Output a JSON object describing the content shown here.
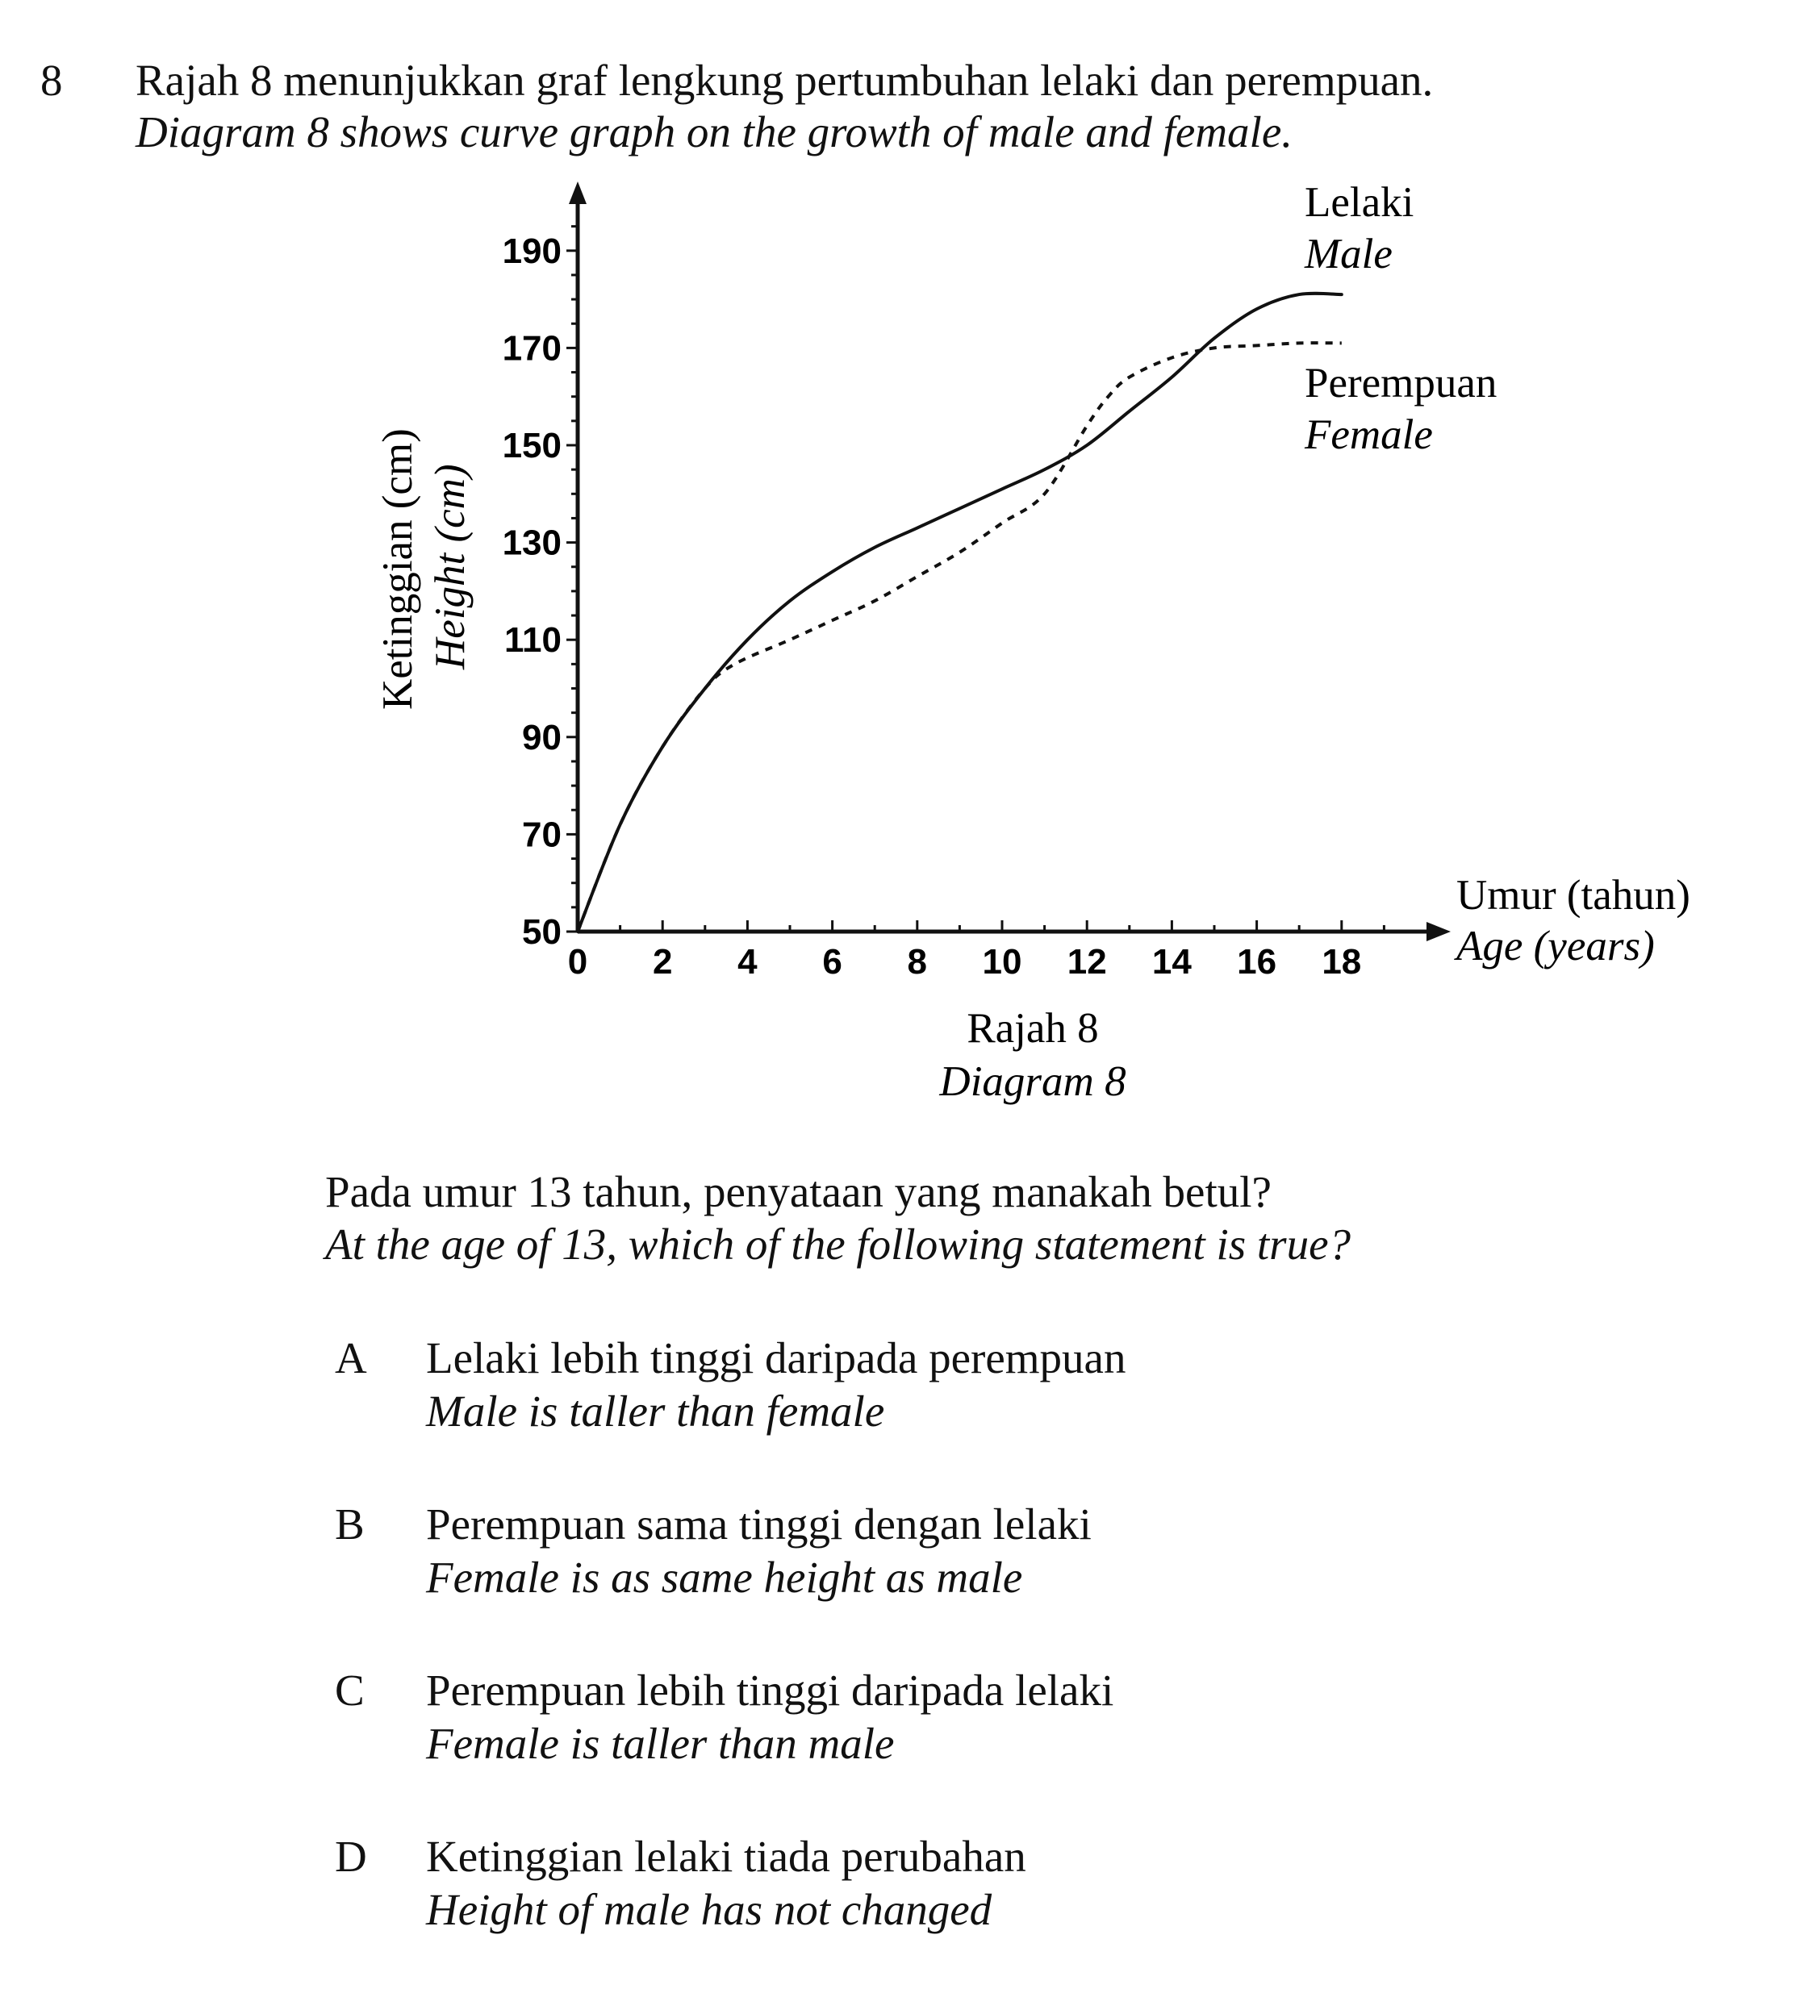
{
  "question": {
    "number": "8",
    "stem_ms": "Rajah 8 menunjukkan graf lengkung pertumbuhan lelaki dan perempuan.",
    "stem_en": "Diagram 8 shows curve graph on the growth of male and female.",
    "prompt_ms": "Pada umur 13 tahun, penyataan yang manakah betul?",
    "prompt_en": "At the age of 13, which of the following statement is true?"
  },
  "diagram": {
    "caption_ms": "Rajah 8",
    "caption_en": "Diagram 8"
  },
  "chart_data": {
    "type": "line",
    "xlabel_ms": "Umur (tahun)",
    "xlabel_en": "Age (years)",
    "ylabel_ms": "Ketinggian (cm)",
    "ylabel_en": "Height (cm)",
    "xlim": [
      0,
      20
    ],
    "ylim": [
      50,
      200
    ],
    "x_ticks": [
      0,
      2,
      4,
      6,
      8,
      10,
      12,
      14,
      16,
      18
    ],
    "y_ticks": [
      50,
      70,
      90,
      110,
      130,
      150,
      170,
      190
    ],
    "grid": false,
    "series": [
      {
        "name_ms": "Lelaki",
        "name_en": "Male",
        "style": "solid",
        "x": [
          0,
          1,
          2,
          3,
          4,
          5,
          6,
          7,
          8,
          9,
          10,
          11,
          12,
          13,
          14,
          15,
          16,
          17,
          18
        ],
        "y": [
          50,
          72,
          88,
          100,
          110,
          118,
          124,
          129,
          133,
          137,
          141,
          145,
          150,
          157,
          164,
          172,
          178,
          181,
          181
        ]
      },
      {
        "name_ms": "Perempuan",
        "name_en": "Female",
        "style": "dashed",
        "x": [
          0,
          1,
          2,
          3,
          3.7,
          5,
          6,
          7,
          8,
          9,
          10,
          11,
          12,
          12.5,
          13,
          14,
          15,
          16,
          17,
          18
        ],
        "y": [
          50,
          72,
          88,
          100,
          105,
          110,
          114,
          118,
          123,
          128,
          134,
          140,
          154,
          160,
          164,
          168,
          170,
          170.5,
          171,
          171
        ]
      }
    ]
  },
  "options": [
    {
      "letter": "A",
      "text_ms": "Lelaki lebih tinggi daripada perempuan",
      "text_en": "Male is taller than female"
    },
    {
      "letter": "B",
      "text_ms": "Perempuan sama tinggi dengan lelaki",
      "text_en": "Female is as same height as male"
    },
    {
      "letter": "C",
      "text_ms": "Perempuan lebih tinggi daripada lelaki",
      "text_en": "Female is taller than male"
    },
    {
      "letter": "D",
      "text_ms": "Ketinggian lelaki tiada perubahan",
      "text_en": "Height of male has not changed"
    }
  ]
}
